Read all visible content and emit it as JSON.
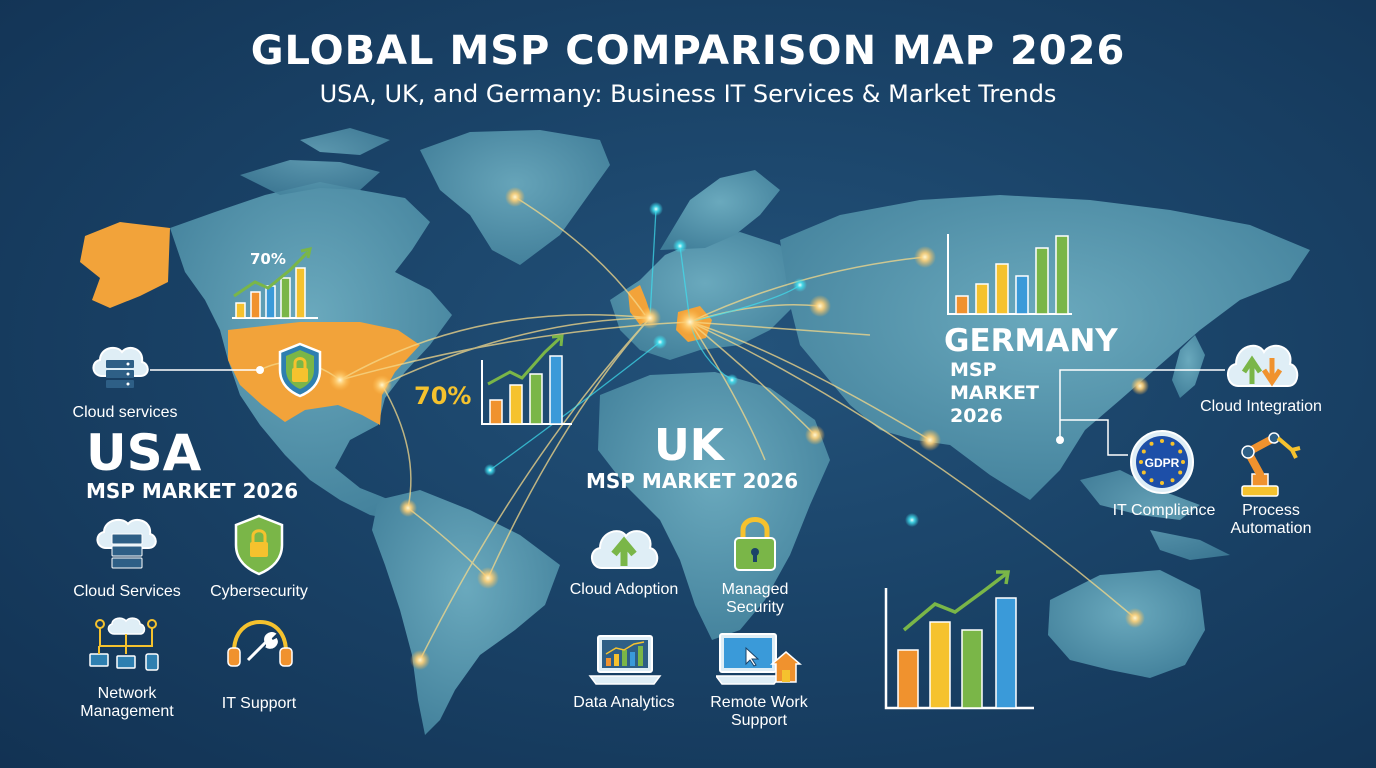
{
  "header": {
    "title": "GLOBAL MSP COMPARISON MAP 2026",
    "subtitle": "USA, UK, and Germany: Business IT Services & Market Trends"
  },
  "colors": {
    "background": "#1a4368",
    "land": "#4e8fa8",
    "usa_highlight": "#f2a33a",
    "uk_highlight": "#f2a33a",
    "germany_highlight": "#f2a33a",
    "connection_line": "#f5d98a",
    "node_glow": "#ffd27a",
    "cyan_node": "#3fe0f0",
    "bar_orange": "#f0922e",
    "bar_yellow": "#f5c22e",
    "bar_blue": "#3a9ad9",
    "bar_green": "#7ab648"
  },
  "usa": {
    "country": "USA",
    "market": "MSP MARKET 2026",
    "top_percent": "70%",
    "callout_label": "Cloud services",
    "services": [
      {
        "label": "Cloud Services",
        "icon": "cloud-server-icon"
      },
      {
        "label": "Cybersecurity",
        "icon": "shield-lock-icon"
      },
      {
        "label": "Network Management",
        "icon": "network-icon"
      },
      {
        "label": "IT Support",
        "icon": "headset-wrench-icon"
      }
    ]
  },
  "uk": {
    "country": "UK",
    "market": "MSP MARKET 2026",
    "percent": "70%",
    "services": [
      {
        "label": "Cloud Adoption",
        "icon": "cloud-upload-icon"
      },
      {
        "label": "Managed Security",
        "icon": "padlock-icon"
      },
      {
        "label": "Data Analytics",
        "icon": "laptop-chart-icon"
      },
      {
        "label": "Remote Work Support",
        "icon": "laptop-home-icon"
      }
    ]
  },
  "germany": {
    "country": "GERMANY",
    "market_line1": "MSP",
    "market_line2": "MARKET",
    "market_line3": "2026",
    "services": [
      {
        "label": "Cloud Integration",
        "icon": "cloud-sync-icon"
      },
      {
        "label": "IT Compliance",
        "icon": "gdpr-badge-icon",
        "badge_text": "GDPR"
      },
      {
        "label": "Process Automation",
        "icon": "robot-arm-icon"
      }
    ]
  }
}
